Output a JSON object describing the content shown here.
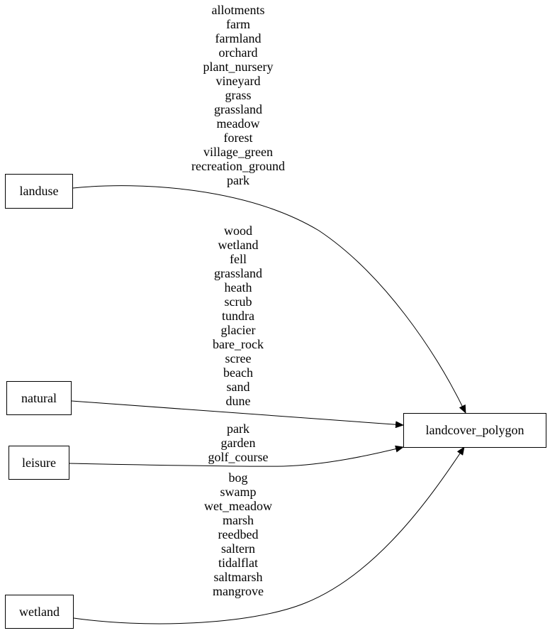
{
  "nodes": {
    "landuse": "landuse",
    "natural": "natural",
    "leisure": "leisure",
    "wetland": "wetland",
    "target": "landcover_polygon"
  },
  "edges": {
    "landuse": [
      "allotments",
      "farm",
      "farmland",
      "orchard",
      "plant_nursery",
      "vineyard",
      "grass",
      "grassland",
      "meadow",
      "forest",
      "village_green",
      "recreation_ground",
      "park"
    ],
    "natural": [
      "wood",
      "wetland",
      "fell",
      "grassland",
      "heath",
      "scrub",
      "tundra",
      "glacier",
      "bare_rock",
      "scree",
      "beach",
      "sand",
      "dune"
    ],
    "leisure": [
      "park",
      "garden",
      "golf_course"
    ],
    "wetland": [
      "bog",
      "swamp",
      "wet_meadow",
      "marsh",
      "reedbed",
      "saltern",
      "tidalflat",
      "saltmarsh",
      "mangrove"
    ]
  }
}
